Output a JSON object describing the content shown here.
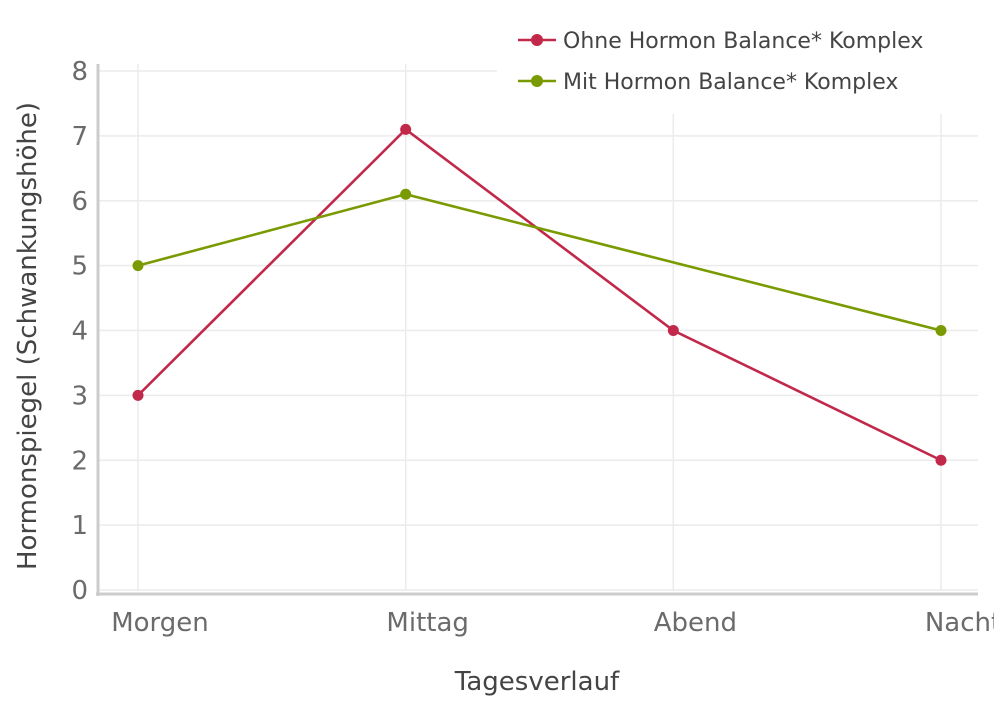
{
  "chart_data": {
    "type": "line",
    "title": "",
    "xlabel": "Tagesverlauf",
    "ylabel": "Hormonspiegel (Schwankungshöhe)",
    "categories": [
      "Morgen",
      "Mittag",
      "Abend",
      "Nacht"
    ],
    "ylim": [
      0,
      8
    ],
    "yticks": [
      "0",
      "1",
      "2",
      "3",
      "4",
      "5",
      "6",
      "7",
      "8"
    ],
    "grid": true,
    "legend_position": "top-right",
    "series": [
      {
        "name": "Ohne Hormon Balance* Komplex",
        "color": "#c1284a",
        "values": [
          3,
          7.1,
          4,
          2
        ]
      },
      {
        "name": "Mit Hormon Balance* Komplex",
        "color": "#7a9a01",
        "values": [
          5,
          6.1,
          null,
          4
        ]
      }
    ]
  }
}
